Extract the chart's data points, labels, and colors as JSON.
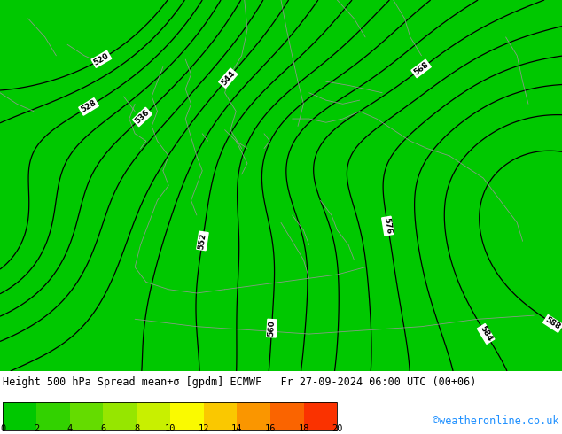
{
  "title_line": "Height 500 hPa Spread mean+σ [gpdm] ECMWF   Fr 27-09-2024 06:00 UTC (00+06)",
  "watermark": "©weatheronline.co.uk",
  "colorbar_values": [
    0,
    2,
    4,
    6,
    8,
    10,
    12,
    14,
    16,
    18,
    20
  ],
  "colorbar_colors": [
    "#00c800",
    "#32d200",
    "#64dc00",
    "#96e600",
    "#c8f000",
    "#fafa00",
    "#fac800",
    "#fa9600",
    "#fa6400",
    "#fa3200",
    "#c80000"
  ],
  "map_bg_color": "#00c800",
  "contour_color": "#000000",
  "land_border_color": "#969696",
  "fig_width": 6.34,
  "fig_height": 4.9,
  "dpi": 100,
  "title_fontsize": 8.5,
  "watermark_color": "#1e90ff",
  "watermark_fontsize": 8.5
}
